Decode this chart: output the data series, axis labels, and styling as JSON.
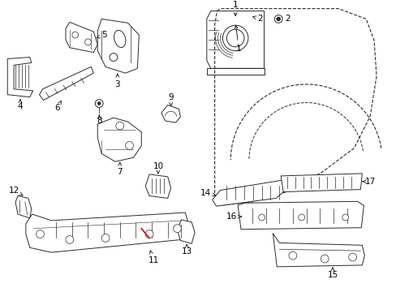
{
  "background_color": "#ffffff",
  "line_color": "#2a2a2a",
  "red_color": "#cc0000",
  "label_color": "#000000",
  "fig_width": 4.89,
  "fig_height": 3.6,
  "dpi": 100
}
